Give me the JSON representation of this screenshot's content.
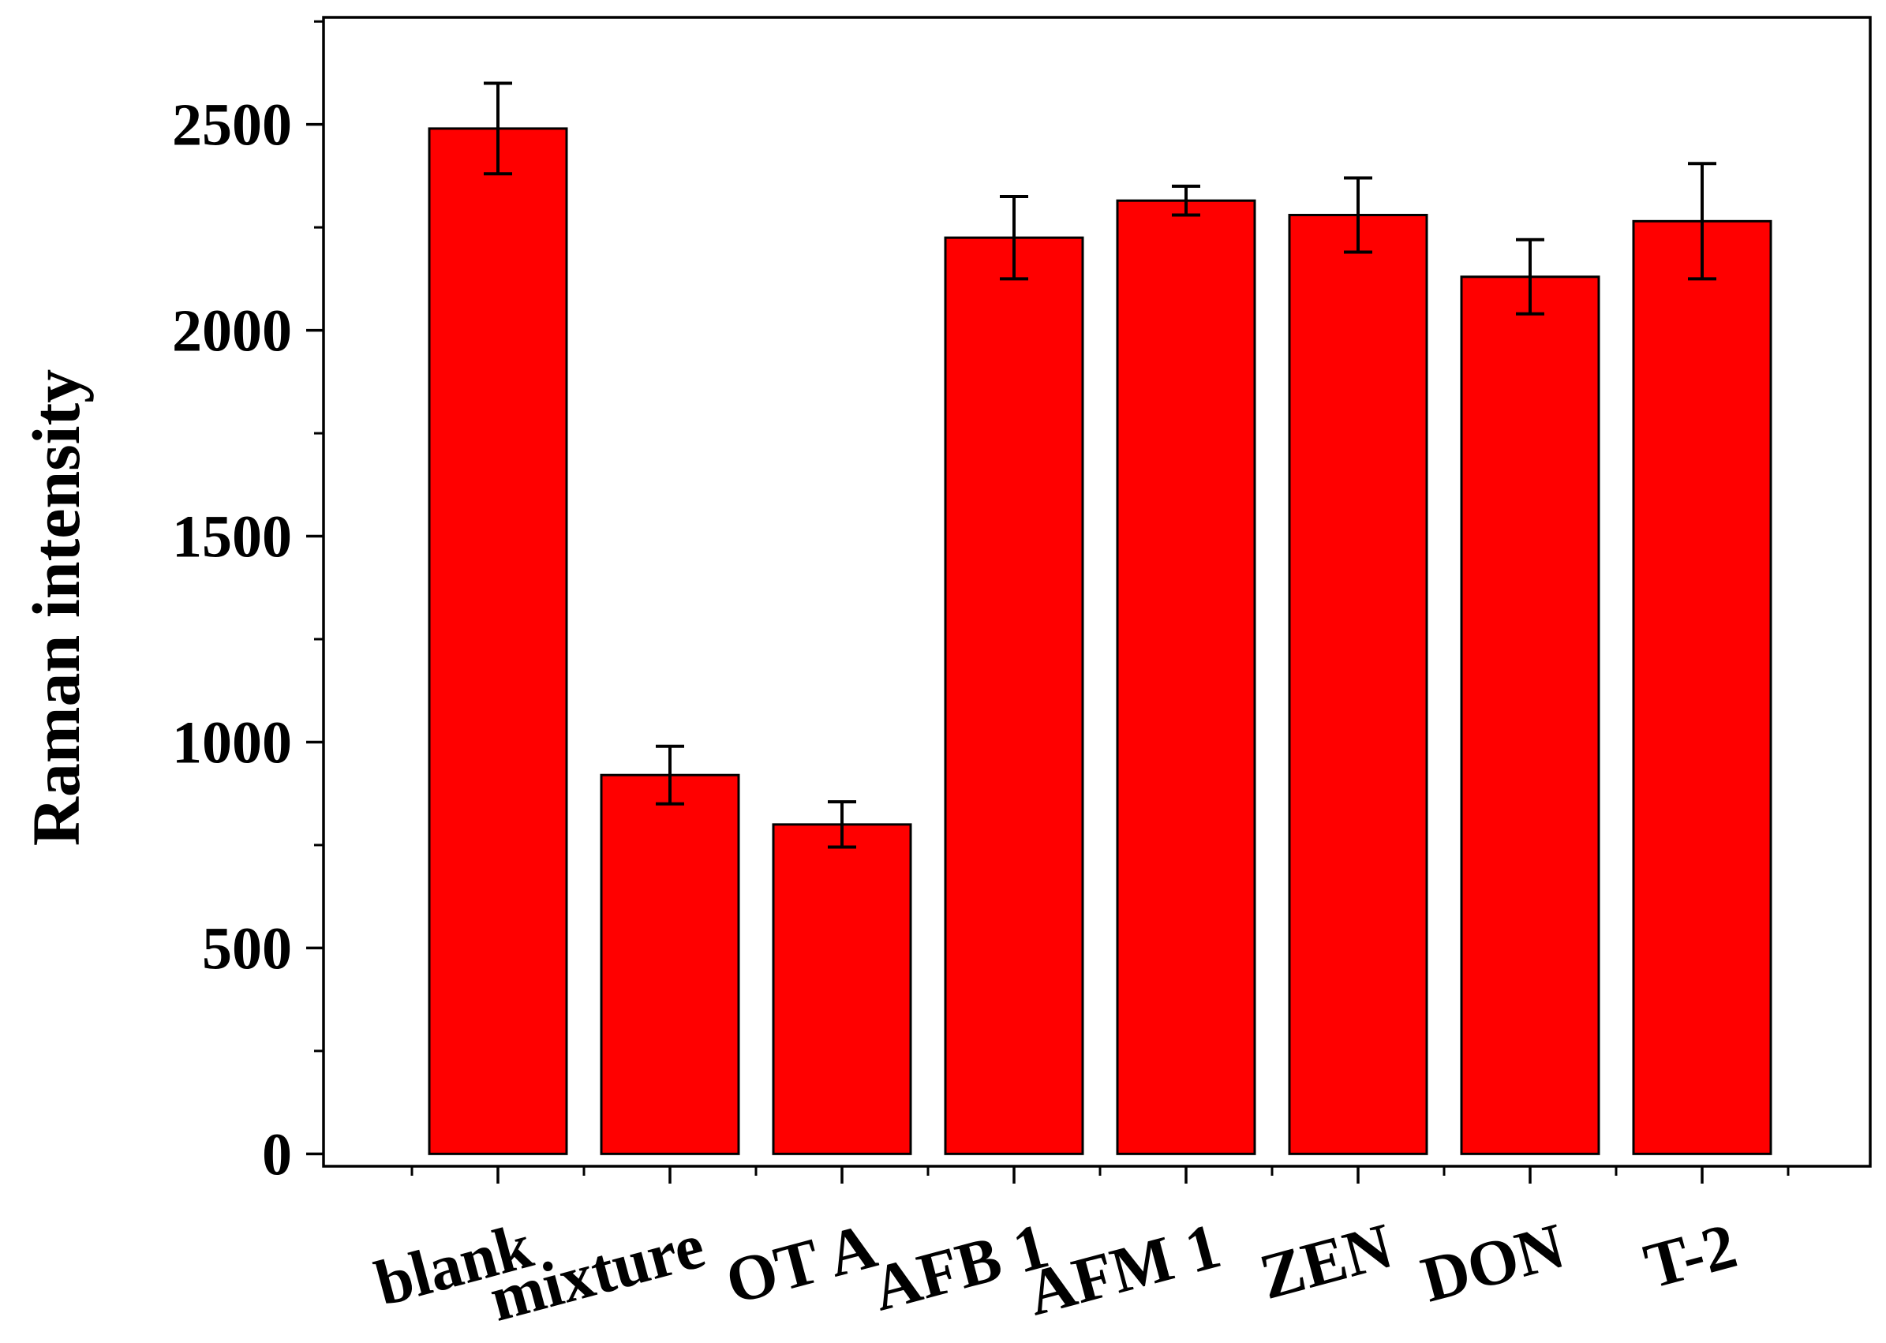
{
  "chart_data": {
    "type": "bar",
    "title": "",
    "xlabel": "",
    "ylabel": "Raman intensity",
    "categories": [
      "blank",
      "mixture",
      "OT A",
      "AFB 1",
      "AFM 1",
      "ZEN",
      "DON",
      "T-2"
    ],
    "values": [
      2490,
      920,
      800,
      2225,
      2315,
      2280,
      2130,
      2265
    ],
    "errors": [
      110,
      70,
      55,
      100,
      35,
      90,
      90,
      140
    ],
    "ylim": [
      -30,
      2760
    ],
    "yticks": [
      0,
      500,
      1000,
      1500,
      2000,
      2500
    ],
    "ytick_labels": [
      "0",
      "500",
      "1000",
      "1500",
      "2000",
      "2500"
    ],
    "grid": false,
    "legend": "none",
    "bar_color": "#ff0000",
    "edge_color": "#000000"
  }
}
